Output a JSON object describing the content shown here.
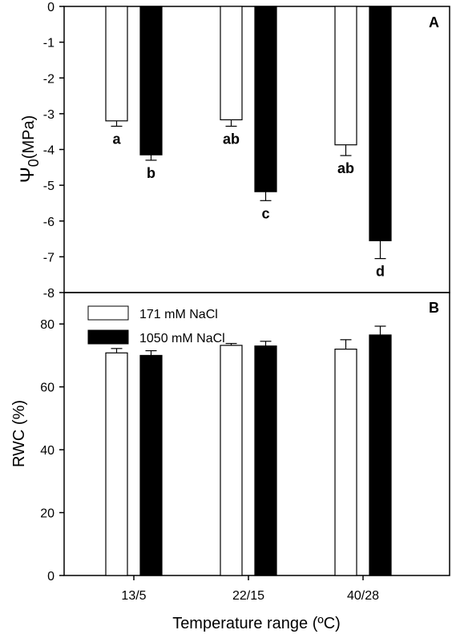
{
  "chart_data": [
    {
      "panel": "A",
      "type": "bar",
      "categories": [
        "13/5",
        "22/15",
        "40/28"
      ],
      "ylabel_symbol": "Ψ",
      "ylabel_subscript": "0",
      "ylabel_unit": "(MPa)",
      "ylim": [
        -8,
        0
      ],
      "yticks": [
        0,
        -1,
        -2,
        -3,
        -4,
        -5,
        -6,
        -7,
        -8
      ],
      "series": [
        {
          "name": "171 mM NaCl",
          "fill": "#ffffff",
          "values": [
            -3.2,
            -3.17,
            -3.87
          ],
          "errors": [
            0.15,
            0.18,
            0.3
          ]
        },
        {
          "name": "1050 mM NaCl",
          "fill": "#000000",
          "values": [
            -4.15,
            -5.18,
            -6.55
          ],
          "errors": [
            0.15,
            0.25,
            0.5
          ]
        }
      ],
      "significance": [
        [
          "a",
          "b"
        ],
        [
          "ab",
          "c"
        ],
        [
          "ab",
          "d"
        ]
      ]
    },
    {
      "panel": "B",
      "type": "bar",
      "categories": [
        "13/5",
        "22/15",
        "40/28"
      ],
      "ylabel": "RWC (%)",
      "xlabel": "Temperature range (ºC)",
      "ylim": [
        0,
        90
      ],
      "yticks": [
        0,
        20,
        40,
        60,
        80
      ],
      "legend_position": "top-left",
      "series": [
        {
          "name": "171 mM NaCl",
          "fill": "#ffffff",
          "values": [
            70.8,
            73.2,
            72.0
          ],
          "errors": [
            1.4,
            0.6,
            3.0
          ]
        },
        {
          "name": "1050 mM NaCl",
          "fill": "#000000",
          "values": [
            70.0,
            73.0,
            76.5
          ],
          "errors": [
            1.5,
            1.5,
            2.8
          ]
        }
      ]
    }
  ]
}
